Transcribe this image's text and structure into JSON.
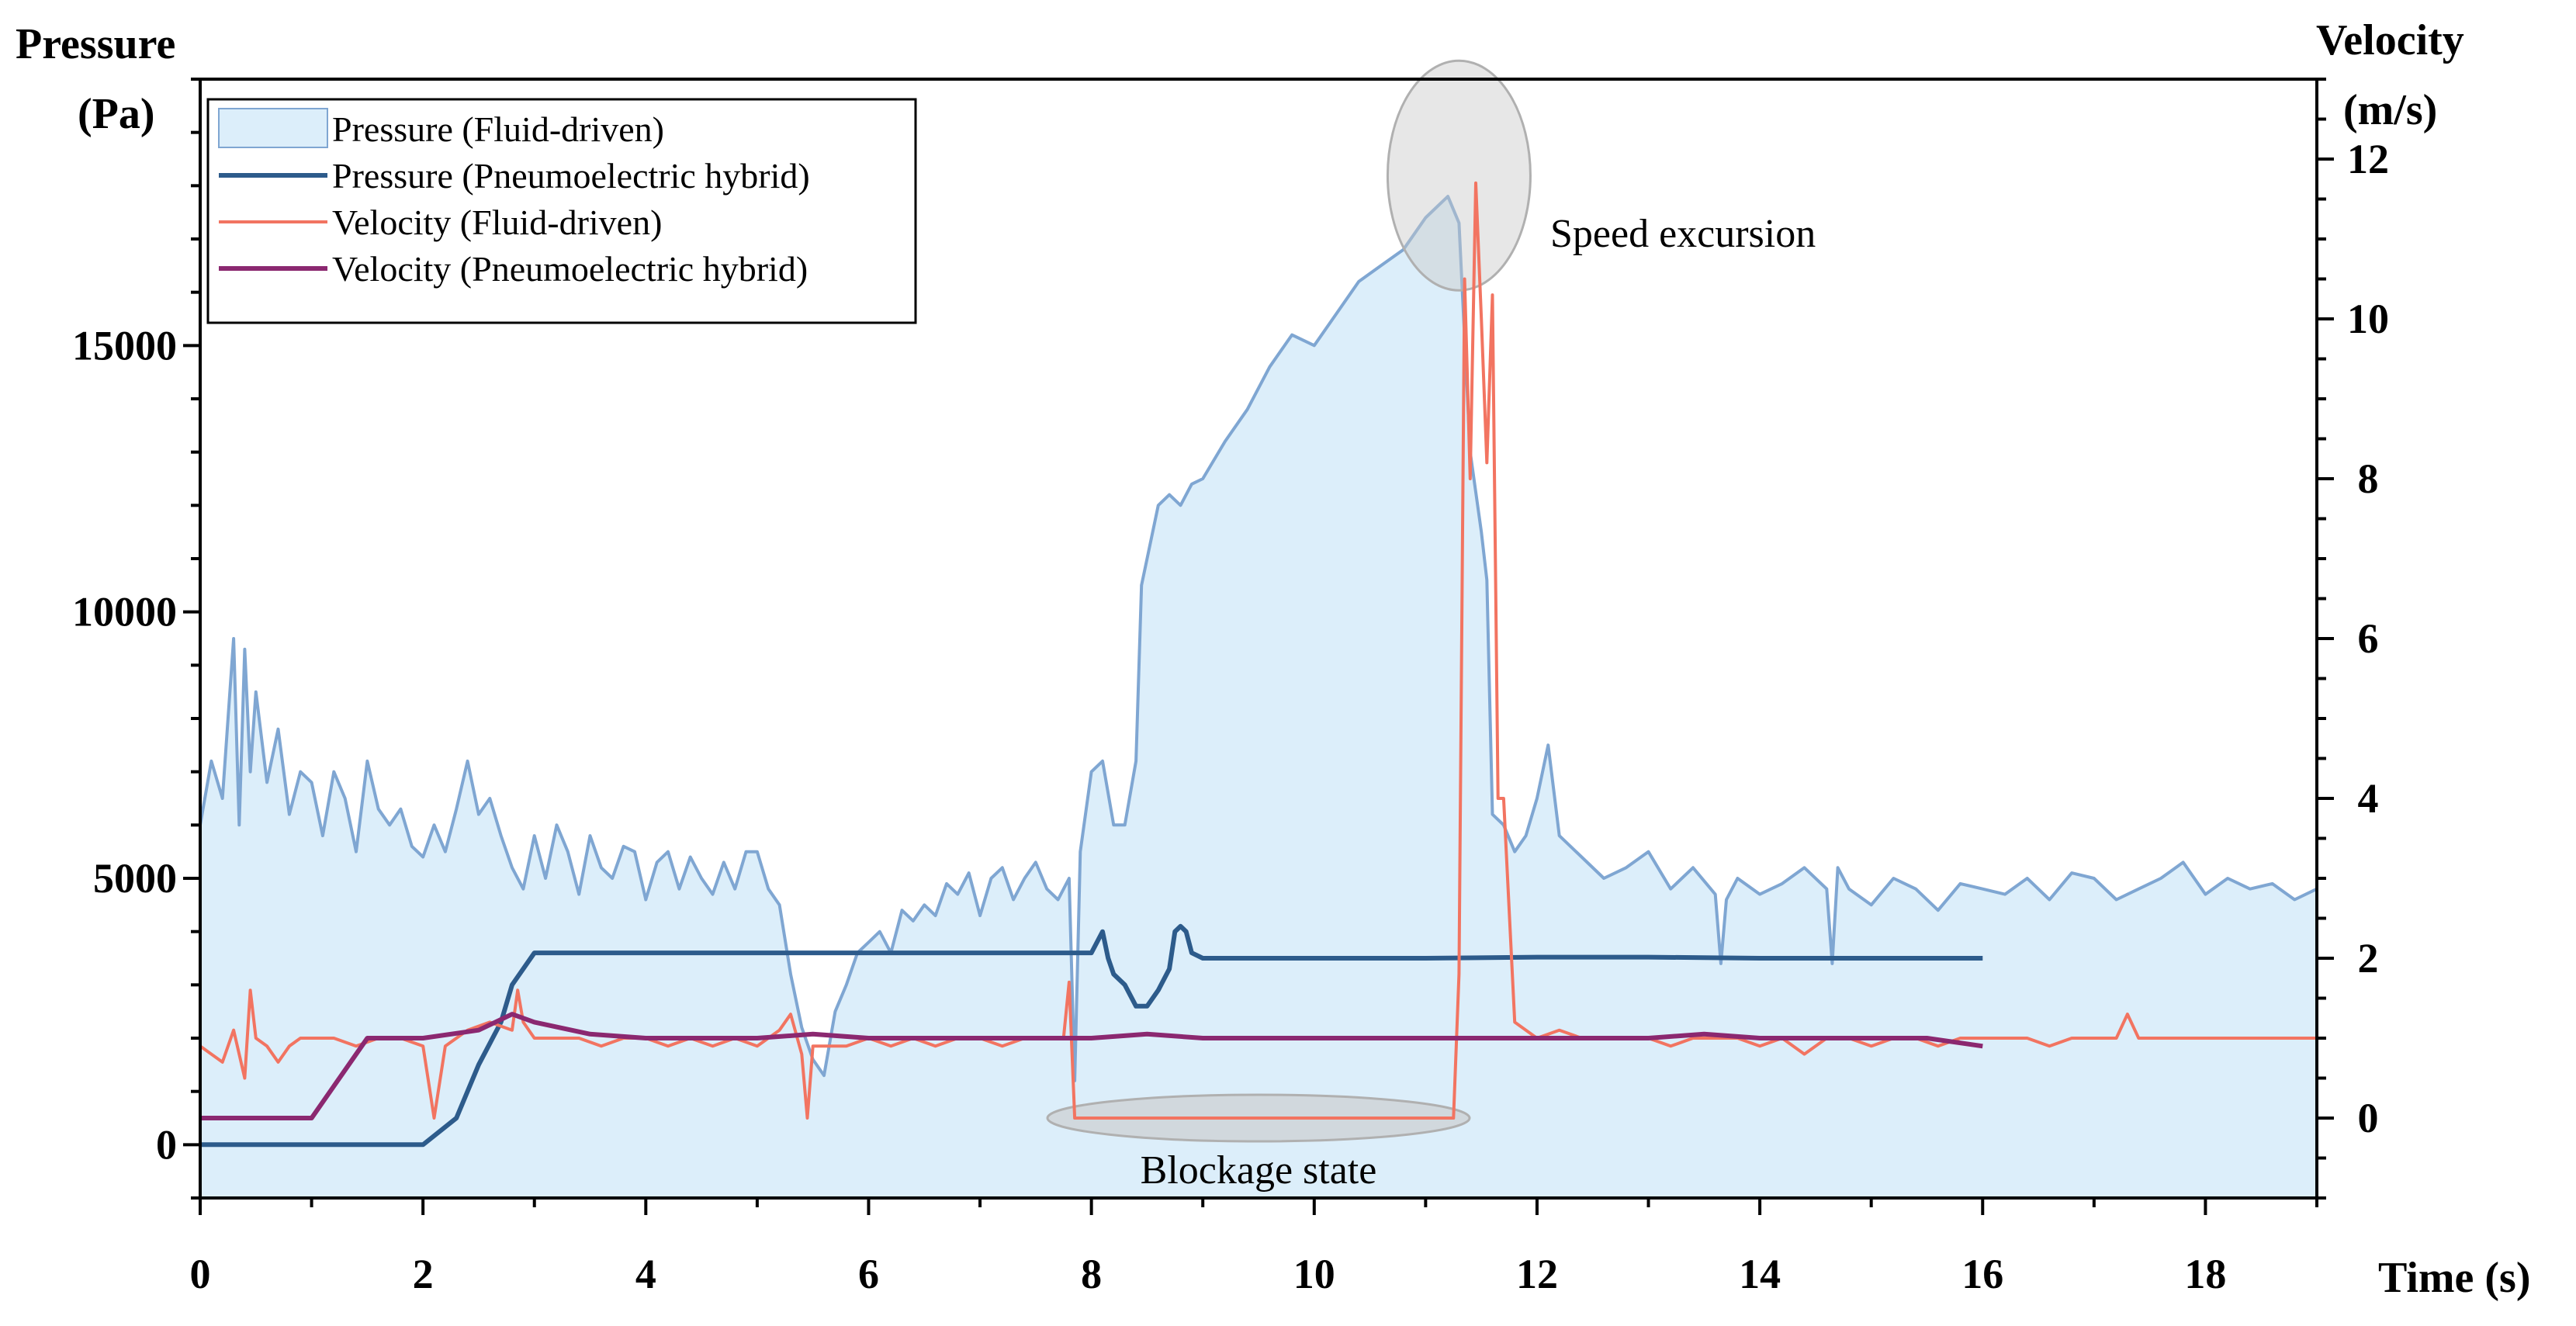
{
  "chart_data": {
    "type": "line",
    "title": "",
    "xlabel": "Time (s)",
    "ylabel_left": [
      "Pressure",
      "(Pa)"
    ],
    "ylabel_right": [
      "Velocity",
      "(m/s)"
    ],
    "xlim": [
      0,
      19
    ],
    "ylim_left": [
      -1000,
      20000
    ],
    "ylim_right": [
      -1,
      13
    ],
    "x_ticks": [
      0,
      2,
      4,
      6,
      8,
      10,
      12,
      14,
      16,
      18
    ],
    "y_left_ticks": [
      0,
      5000,
      10000,
      15000
    ],
    "y_right_ticks": [
      0,
      2,
      4,
      6,
      8,
      10,
      12
    ],
    "grid": false,
    "legend_position": "top-left",
    "colors": {
      "pressure_fluid_fill": "#dceefa",
      "pressure_fluid_line": "#7fa6d2",
      "pressure_hybrid": "#2d5b8b",
      "velocity_fluid": "#f27461",
      "velocity_hybrid": "#8b2870",
      "annotation_fill": "#c9c9c9"
    },
    "series": [
      {
        "name": "Pressure (Fluid-driven)",
        "axis": "left",
        "style": "area",
        "x": [
          0,
          0.1,
          0.2,
          0.3,
          0.35,
          0.4,
          0.45,
          0.5,
          0.6,
          0.7,
          0.8,
          0.9,
          1.0,
          1.1,
          1.2,
          1.3,
          1.4,
          1.5,
          1.6,
          1.7,
          1.8,
          1.9,
          2.0,
          2.1,
          2.2,
          2.3,
          2.4,
          2.5,
          2.6,
          2.7,
          2.8,
          2.9,
          3.0,
          3.1,
          3.2,
          3.3,
          3.4,
          3.5,
          3.6,
          3.7,
          3.8,
          3.9,
          4.0,
          4.1,
          4.2,
          4.3,
          4.4,
          4.5,
          4.6,
          4.7,
          4.8,
          4.9,
          5.0,
          5.1,
          5.2,
          5.3,
          5.4,
          5.5,
          5.6,
          5.7,
          5.8,
          5.9,
          6.0,
          6.1,
          6.2,
          6.3,
          6.4,
          6.5,
          6.6,
          6.7,
          6.8,
          6.9,
          7.0,
          7.1,
          7.2,
          7.3,
          7.4,
          7.5,
          7.6,
          7.7,
          7.8,
          7.85,
          7.9,
          8.0,
          8.1,
          8.2,
          8.3,
          8.4,
          8.45,
          8.5,
          8.6,
          8.7,
          8.8,
          8.9,
          9.0,
          9.2,
          9.4,
          9.6,
          9.8,
          10.0,
          10.2,
          10.4,
          10.6,
          10.8,
          11.0,
          11.2,
          11.3,
          11.4,
          11.5,
          11.55,
          11.6,
          11.7,
          11.8,
          11.9,
          12.0,
          12.1,
          12.2,
          12.4,
          12.6,
          12.8,
          13.0,
          13.2,
          13.4,
          13.6,
          13.65,
          13.7,
          13.8,
          14.0,
          14.2,
          14.4,
          14.6,
          14.65,
          14.7,
          14.8,
          15.0,
          15.2,
          15.4,
          15.6,
          15.8,
          16.0,
          16.2,
          16.4,
          16.6,
          16.8,
          17.0,
          17.2,
          17.4,
          17.6,
          17.8,
          18.0,
          18.2,
          18.4,
          18.6,
          18.8,
          19.0
        ],
        "values": [
          6000,
          7200,
          6500,
          9500,
          6000,
          9300,
          7000,
          8500,
          6800,
          7800,
          6200,
          7000,
          6800,
          5800,
          7000,
          6500,
          5500,
          7200,
          6300,
          6000,
          6300,
          5600,
          5400,
          6000,
          5500,
          6300,
          7200,
          6200,
          6500,
          5800,
          5200,
          4800,
          5800,
          5000,
          6000,
          5500,
          4700,
          5800,
          5200,
          5000,
          5600,
          5500,
          4600,
          5300,
          5500,
          4800,
          5400,
          5000,
          4700,
          5300,
          4800,
          5500,
          5500,
          4800,
          4500,
          3200,
          2200,
          1600,
          1300,
          2500,
          3000,
          3600,
          3800,
          4000,
          3600,
          4400,
          4200,
          4500,
          4300,
          4900,
          4700,
          5100,
          4300,
          5000,
          5200,
          4600,
          5000,
          5300,
          4800,
          4600,
          5000,
          1200,
          5500,
          7000,
          7200,
          6000,
          6000,
          7200,
          10500,
          11000,
          12000,
          12200,
          12000,
          12400,
          12500,
          13200,
          13800,
          14600,
          15200,
          15000,
          15600,
          16200,
          16500,
          16800,
          17400,
          17800,
          17300,
          13000,
          11500,
          10600,
          6200,
          6000,
          5500,
          5800,
          6500,
          7500,
          5800,
          5400,
          5000,
          5200,
          5500,
          4800,
          5200,
          4700,
          3400,
          4600,
          5000,
          4700,
          4900,
          5200,
          4800,
          3400,
          5200,
          4800,
          4500,
          5000,
          4800,
          4400,
          4900,
          4800,
          4700,
          5000,
          4600,
          5100,
          5000,
          4600,
          4800,
          5000,
          5300,
          4700,
          5000,
          4800,
          4900,
          4600,
          4800
        ]
      },
      {
        "name": "Pressure (Pneumoelectric hybrid)",
        "axis": "left",
        "style": "line",
        "x": [
          0,
          1.0,
          2.0,
          2.3,
          2.5,
          2.7,
          2.8,
          3.0,
          4.0,
          5.0,
          6.0,
          7.0,
          7.8,
          8.0,
          8.1,
          8.15,
          8.2,
          8.3,
          8.4,
          8.5,
          8.6,
          8.7,
          8.75,
          8.8,
          8.85,
          8.9,
          9.0,
          10.0,
          11.0,
          12.0,
          13.0,
          14.0,
          15.0,
          16.0
        ],
        "values": [
          0,
          0,
          0,
          500,
          1500,
          2300,
          3000,
          3600,
          3600,
          3600,
          3600,
          3600,
          3600,
          3600,
          4000,
          3500,
          3200,
          3000,
          2600,
          2600,
          2900,
          3300,
          4000,
          4100,
          4000,
          3600,
          3500,
          3500,
          3500,
          3520,
          3520,
          3500,
          3500,
          3500
        ]
      },
      {
        "name": "Velocity (Fluid-driven)",
        "axis": "right",
        "style": "line",
        "x": [
          0,
          0.1,
          0.2,
          0.3,
          0.4,
          0.45,
          0.5,
          0.6,
          0.7,
          0.8,
          0.9,
          1.0,
          1.2,
          1.4,
          1.6,
          1.8,
          2.0,
          2.1,
          2.2,
          2.4,
          2.6,
          2.8,
          2.85,
          2.9,
          3.0,
          3.2,
          3.4,
          3.6,
          3.8,
          4.0,
          4.2,
          4.4,
          4.6,
          4.8,
          5.0,
          5.2,
          5.3,
          5.4,
          5.45,
          5.5,
          5.6,
          5.8,
          6.0,
          6.2,
          6.4,
          6.6,
          6.8,
          7.0,
          7.2,
          7.4,
          7.6,
          7.75,
          7.8,
          7.85,
          8.5,
          9.0,
          10.0,
          11.0,
          11.25,
          11.3,
          11.35,
          11.4,
          11.45,
          11.5,
          11.55,
          11.6,
          11.65,
          11.7,
          11.8,
          12.0,
          12.2,
          12.4,
          12.6,
          12.8,
          13.0,
          13.2,
          13.4,
          13.6,
          13.8,
          14.0,
          14.2,
          14.4,
          14.6,
          14.8,
          15.0,
          15.2,
          15.4,
          15.6,
          15.8,
          16.0,
          16.2,
          16.4,
          16.6,
          16.8,
          17.0,
          17.2,
          17.3,
          17.4,
          17.6,
          17.8,
          18.0,
          18.2,
          18.4,
          18.6,
          18.8,
          19.0
        ],
        "values": [
          0.9,
          0.8,
          0.7,
          1.1,
          0.5,
          1.6,
          1.0,
          0.9,
          0.7,
          0.9,
          1.0,
          1.0,
          1.0,
          0.9,
          1.0,
          1.0,
          0.9,
          0.0,
          0.9,
          1.1,
          1.2,
          1.1,
          1.6,
          1.2,
          1.0,
          1.0,
          1.0,
          0.9,
          1.0,
          1.0,
          0.9,
          1.0,
          0.9,
          1.0,
          0.9,
          1.1,
          1.3,
          0.8,
          0.0,
          0.9,
          0.9,
          0.9,
          1.0,
          0.9,
          1.0,
          0.9,
          1.0,
          1.0,
          0.9,
          1.0,
          1.0,
          1.0,
          1.7,
          0.0,
          0.0,
          0.0,
          0.0,
          0.0,
          0.0,
          1.8,
          10.5,
          8.0,
          11.7,
          10.0,
          8.2,
          10.3,
          4.0,
          4.0,
          1.2,
          1.0,
          1.1,
          1.0,
          1.0,
          1.0,
          1.0,
          0.9,
          1.0,
          1.0,
          1.0,
          0.9,
          1.0,
          0.8,
          1.0,
          1.0,
          0.9,
          1.0,
          1.0,
          0.9,
          1.0,
          1.0,
          1.0,
          1.0,
          0.9,
          1.0,
          1.0,
          1.0,
          1.3,
          1.0,
          1.0,
          1.0,
          1.0,
          1.0,
          1.0,
          1.0,
          1.0,
          1.0
        ]
      },
      {
        "name": "Velocity (Pneumoelectric hybrid)",
        "axis": "right",
        "style": "line",
        "x": [
          0,
          0.5,
          1.0,
          1.2,
          1.5,
          2.0,
          2.5,
          2.8,
          3.0,
          3.5,
          4.0,
          4.5,
          5.0,
          5.5,
          6.0,
          6.5,
          7.0,
          7.4,
          7.6,
          7.8,
          7.85,
          8.0,
          8.5,
          9.0,
          10.0,
          11.0,
          12.0,
          13.0,
          13.5,
          14.0,
          15.0,
          15.5,
          16.0
        ],
        "values": [
          0,
          0,
          0,
          0.4,
          1.0,
          1.0,
          1.1,
          1.3,
          1.2,
          1.05,
          1.0,
          1.0,
          1.0,
          1.05,
          1.0,
          1.0,
          1.0,
          1.0,
          1.0,
          1.0,
          1.0,
          1.0,
          1.05,
          1.0,
          1.0,
          1.0,
          1.0,
          1.0,
          1.05,
          1.0,
          1.0,
          1.0,
          0.9
        ]
      }
    ],
    "annotations": [
      {
        "text": "Speed excursion",
        "x": 11.3,
        "y_right": 11.6
      },
      {
        "text": "Blockage state",
        "x": 9.5,
        "y_right": 0.0
      }
    ]
  }
}
